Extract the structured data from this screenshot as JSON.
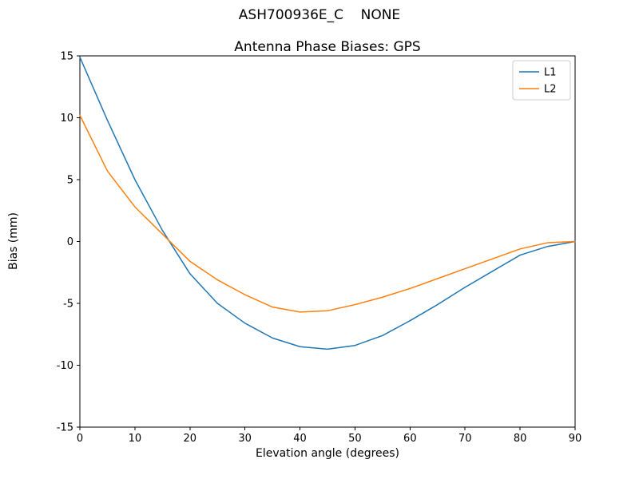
{
  "figure": {
    "suptitle": "ASH700936E_C    NONE"
  },
  "chart_data": {
    "type": "line",
    "title": "Antenna Phase Biases: GPS",
    "xlabel": "Elevation angle (degrees)",
    "ylabel": "Bias (mm)",
    "xlim": [
      0,
      90
    ],
    "ylim": [
      -15,
      15
    ],
    "xticks": [
      0,
      10,
      20,
      30,
      40,
      50,
      60,
      70,
      80,
      90
    ],
    "yticks": [
      -15,
      -10,
      -5,
      0,
      5,
      10,
      15
    ],
    "grid": false,
    "legend_position": "upper right",
    "x": [
      0,
      5,
      10,
      15,
      20,
      25,
      30,
      35,
      40,
      45,
      50,
      55,
      60,
      65,
      70,
      75,
      80,
      85,
      90
    ],
    "series": [
      {
        "name": "L1",
        "color": "#1f77b4",
        "values": [
          14.9,
          9.8,
          5.0,
          0.9,
          -2.6,
          -5.0,
          -6.6,
          -7.8,
          -8.5,
          -8.7,
          -8.4,
          -7.6,
          -6.4,
          -5.1,
          -3.7,
          -2.4,
          -1.1,
          -0.4,
          0.0
        ]
      },
      {
        "name": "L2",
        "color": "#ff7f0e",
        "values": [
          10.2,
          5.7,
          2.8,
          0.6,
          -1.6,
          -3.1,
          -4.3,
          -5.3,
          -5.7,
          -5.6,
          -5.1,
          -4.5,
          -3.8,
          -3.0,
          -2.2,
          -1.4,
          -0.6,
          -0.1,
          0.0
        ]
      }
    ]
  }
}
